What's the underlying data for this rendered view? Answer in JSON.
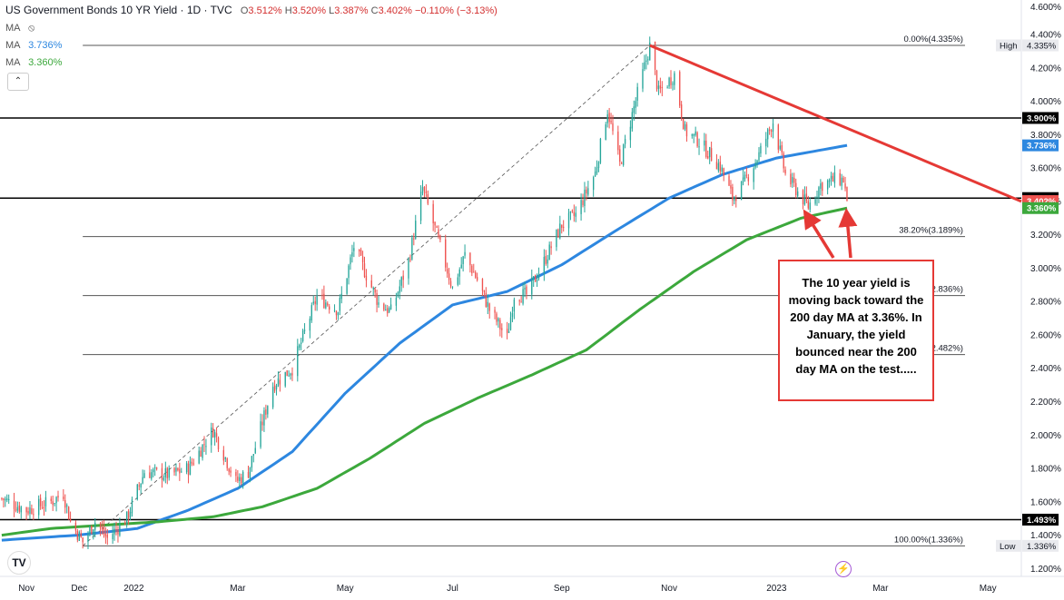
{
  "header": {
    "title": "US Government Bonds 10 YR Yield · 1D · TVC",
    "o_label": "O",
    "o_value": "3.512%",
    "h_label": "H",
    "h_value": "3.520%",
    "l_label": "L",
    "l_value": "3.387%",
    "c_label": "C",
    "c_value": "3.402%",
    "change": "−0.110% (−3.13%)"
  },
  "indicators": [
    {
      "label": "MA",
      "value": "",
      "icon": "eye-slash-icon"
    },
    {
      "label": "MA",
      "value": "3.736%",
      "color": "#2d87e0"
    },
    {
      "label": "MA",
      "value": "3.360%",
      "color": "#3ca83c"
    }
  ],
  "icons": {
    "collapse": "chevron-up-icon",
    "logo": "tradingview-logo",
    "events": "lightning-icon"
  },
  "annotation": {
    "text": "The 10 year yield is moving back toward the 200 day MA at 3.36%. In January, the yield bounced near the 200 day MA on the test....."
  },
  "colors": {
    "up": "#26a69a",
    "down": "#ef5350",
    "ma_fast": "#2d87e0",
    "ma_slow": "#3ca83c",
    "trendline": "#e53935",
    "fib": "#787b86",
    "hline": "#000000"
  },
  "chart_data": {
    "type": "candlestick",
    "title": "US Government Bonds 10 YR Yield · 1D · TVC",
    "y_axis": {
      "ticks": [
        "4.400%",
        "4.200%",
        "4.000%",
        "3.800%",
        "3.600%",
        "3.400%",
        "3.200%",
        "3.000%",
        "2.800%",
        "2.600%",
        "2.400%",
        "2.200%",
        "2.000%",
        "1.800%",
        "1.600%",
        "1.400%",
        "1.200%"
      ],
      "tick_values": [
        4.4,
        4.2,
        4.0,
        3.8,
        3.6,
        3.4,
        3.2,
        3.0,
        2.8,
        2.6,
        2.4,
        2.2,
        2.0,
        1.8,
        1.6,
        1.4,
        1.2
      ],
      "range": [
        1.18,
        4.52
      ],
      "top_partial_label": "4.600%"
    },
    "x_axis": {
      "labels": [
        "Nov",
        "Dec",
        "2022",
        "Mar",
        "May",
        "Jul",
        "Sep",
        "Nov",
        "2023",
        "Mar",
        "May"
      ],
      "label_dates": [
        "2021-11-01",
        "2021-12-01",
        "2022-01-01",
        "2022-03-01",
        "2022-05-01",
        "2022-07-01",
        "2022-09-01",
        "2022-11-01",
        "2023-01-01",
        "2023-03-01",
        "2023-05-01"
      ],
      "range": [
        "2021-10-17",
        "2023-05-20"
      ]
    },
    "price_points": [
      [
        "2021-10-18",
        1.62
      ],
      [
        "2021-11-01",
        1.55
      ],
      [
        "2021-11-15",
        1.6
      ],
      [
        "2021-11-22",
        1.65
      ],
      [
        "2021-11-26",
        1.48
      ],
      [
        "2021-12-03",
        1.36
      ],
      [
        "2021-12-10",
        1.48
      ],
      [
        "2021-12-17",
        1.38
      ],
      [
        "2021-12-28",
        1.5
      ],
      [
        "2022-01-07",
        1.78
      ],
      [
        "2022-01-21",
        1.76
      ],
      [
        "2022-02-01",
        1.8
      ],
      [
        "2022-02-15",
        2.03
      ],
      [
        "2022-02-28",
        1.72
      ],
      [
        "2022-03-07",
        1.78
      ],
      [
        "2022-03-21",
        2.3
      ],
      [
        "2022-04-01",
        2.4
      ],
      [
        "2022-04-15",
        2.83
      ],
      [
        "2022-04-27",
        2.75
      ],
      [
        "2022-05-06",
        3.13
      ],
      [
        "2022-05-20",
        2.79
      ],
      [
        "2022-05-27",
        2.74
      ],
      [
        "2022-06-06",
        3.04
      ],
      [
        "2022-06-14",
        3.48
      ],
      [
        "2022-06-24",
        3.13
      ],
      [
        "2022-07-01",
        2.88
      ],
      [
        "2022-07-08",
        3.08
      ],
      [
        "2022-07-15",
        2.93
      ],
      [
        "2022-07-22",
        2.75
      ],
      [
        "2022-08-01",
        2.58
      ],
      [
        "2022-08-05",
        2.84
      ],
      [
        "2022-08-12",
        2.84
      ],
      [
        "2022-08-22",
        3.04
      ],
      [
        "2022-09-01",
        3.26
      ],
      [
        "2022-09-09",
        3.32
      ],
      [
        "2022-09-20",
        3.57
      ],
      [
        "2022-09-27",
        3.95
      ],
      [
        "2022-10-04",
        3.62
      ],
      [
        "2022-10-10",
        3.88
      ],
      [
        "2022-10-21",
        4.33
      ],
      [
        "2022-10-26",
        4.05
      ],
      [
        "2022-11-04",
        4.16
      ],
      [
        "2022-11-10",
        3.82
      ],
      [
        "2022-11-17",
        3.77
      ],
      [
        "2022-11-30",
        3.61
      ],
      [
        "2022-12-07",
        3.42
      ],
      [
        "2022-12-13",
        3.5
      ],
      [
        "2022-12-22",
        3.68
      ],
      [
        "2022-12-30",
        3.88
      ],
      [
        "2023-01-06",
        3.56
      ],
      [
        "2023-01-19",
        3.37
      ],
      [
        "2023-01-26",
        3.5
      ],
      [
        "2023-02-03",
        3.53
      ],
      [
        "2023-02-08",
        3.53
      ],
      [
        "2023-02-10",
        3.402
      ]
    ],
    "series": [
      {
        "name": "MA",
        "last_value": 3.736,
        "points": [
          [
            "2021-10-18",
            1.37
          ],
          [
            "2021-11-30",
            1.4
          ],
          [
            "2022-01-03",
            1.44
          ],
          [
            "2022-02-01",
            1.55
          ],
          [
            "2022-03-01",
            1.68
          ],
          [
            "2022-04-01",
            1.9
          ],
          [
            "2022-05-01",
            2.25
          ],
          [
            "2022-06-01",
            2.55
          ],
          [
            "2022-07-01",
            2.78
          ],
          [
            "2022-08-01",
            2.86
          ],
          [
            "2022-09-01",
            3.02
          ],
          [
            "2022-10-01",
            3.22
          ],
          [
            "2022-11-01",
            3.42
          ],
          [
            "2022-12-01",
            3.56
          ],
          [
            "2023-01-01",
            3.66
          ],
          [
            "2023-02-10",
            3.736
          ]
        ]
      },
      {
        "name": "MA",
        "last_value": 3.36,
        "points": [
          [
            "2021-10-18",
            1.4
          ],
          [
            "2021-11-15",
            1.44
          ],
          [
            "2021-12-15",
            1.46
          ],
          [
            "2022-01-15",
            1.48
          ],
          [
            "2022-02-15",
            1.51
          ],
          [
            "2022-03-15",
            1.57
          ],
          [
            "2022-04-15",
            1.68
          ],
          [
            "2022-05-15",
            1.86
          ],
          [
            "2022-06-15",
            2.07
          ],
          [
            "2022-07-15",
            2.22
          ],
          [
            "2022-08-15",
            2.36
          ],
          [
            "2022-09-15",
            2.51
          ],
          [
            "2022-10-15",
            2.75
          ],
          [
            "2022-11-15",
            2.98
          ],
          [
            "2022-12-15",
            3.17
          ],
          [
            "2023-01-15",
            3.3
          ],
          [
            "2023-02-10",
            3.36
          ]
        ]
      }
    ],
    "fibonacci": [
      {
        "ratio_label": "0.00%",
        "value": 4.335,
        "label": "0.00%(4.335%)"
      },
      {
        "ratio_label": "38.20%",
        "value": 3.189,
        "label": "38.20%(3.189%)"
      },
      {
        "ratio_label": "50.00%",
        "value": 2.836,
        "label": "50.00%(2.836%)"
      },
      {
        "ratio_label": "61.80%",
        "value": 2.482,
        "label": "61.80%(2.482%)"
      },
      {
        "ratio_label": "100.00%",
        "value": 1.336,
        "label": "100.00%(1.336%)"
      }
    ],
    "fib_range": {
      "start": "2021-12-03",
      "end": "2023-02-10"
    },
    "horizontal_lines": [
      3.9,
      3.42,
      1.493
    ],
    "trendline": [
      [
        "2022-10-21",
        4.335
      ],
      [
        "2023-05-20",
        3.4
      ]
    ],
    "diagonal_dashed": [
      [
        "2021-12-03",
        1.336
      ],
      [
        "2022-10-21",
        4.335
      ]
    ],
    "price_tags": [
      {
        "text": "4.335%",
        "value": 4.335,
        "style": "plain",
        "label": "High"
      },
      {
        "text": "3.900%",
        "value": 3.9,
        "style": "black"
      },
      {
        "text": "3.736%",
        "value": 3.736,
        "style": "blue"
      },
      {
        "text": "3.420%",
        "value": 3.42,
        "style": "black"
      },
      {
        "text": "3.402%",
        "value": 3.402,
        "style": "red"
      },
      {
        "text": "3.360%",
        "value": 3.36,
        "style": "green"
      },
      {
        "text": "1.493%",
        "value": 1.493,
        "style": "black"
      },
      {
        "text": "1.336%",
        "value": 1.336,
        "style": "plain",
        "label": "Low"
      }
    ],
    "annotation_arrows_target_dates": [
      "2023-01-19",
      "2023-02-10"
    ],
    "grid": false
  }
}
